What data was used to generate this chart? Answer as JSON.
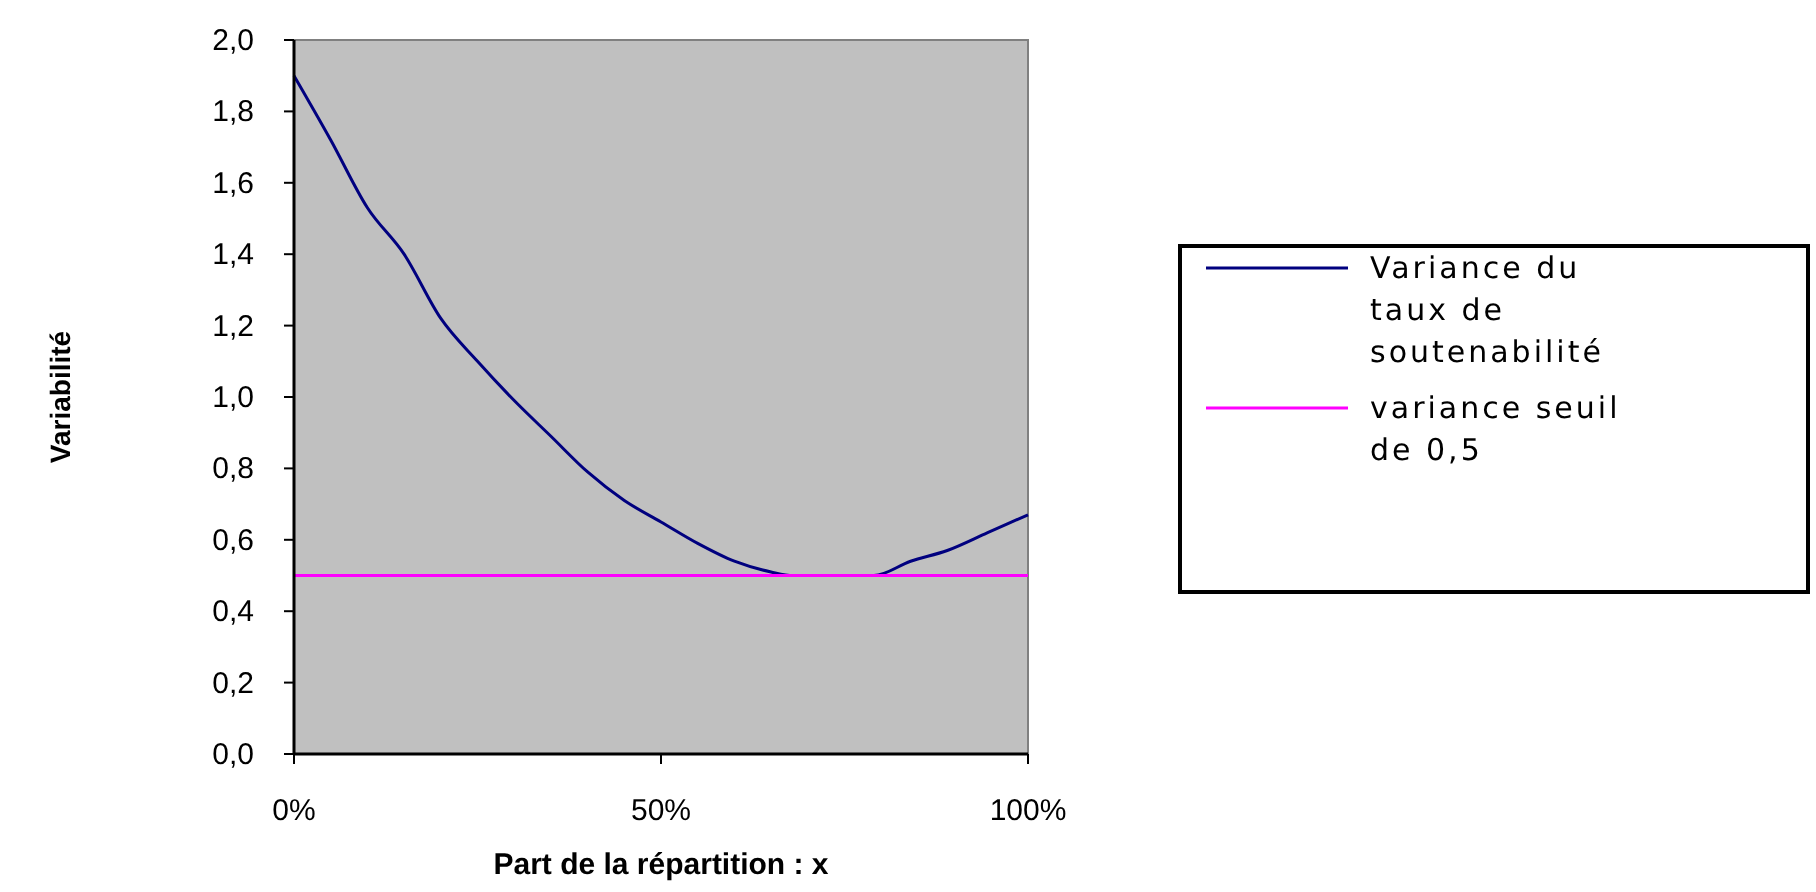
{
  "chart_data": {
    "type": "line",
    "xlabel": "Part de la répartition : x",
    "ylabel": "Variabilité",
    "xlim": [
      0,
      100
    ],
    "xticks": [
      {
        "value": 0,
        "label": "0%"
      },
      {
        "value": 50,
        "label": "50%"
      },
      {
        "value": 100,
        "label": "100%"
      }
    ],
    "ylim": [
      0,
      2
    ],
    "yticks": [
      {
        "value": 0,
        "label": "0,0"
      },
      {
        "value": 0.2,
        "label": "0,2"
      },
      {
        "value": 0.4,
        "label": "0,4"
      },
      {
        "value": 0.6,
        "label": "0,6"
      },
      {
        "value": 0.8,
        "label": "0,8"
      },
      {
        "value": 1,
        "label": "1,0"
      },
      {
        "value": 1.2,
        "label": "1,2"
      },
      {
        "value": 1.4,
        "label": "1,4"
      },
      {
        "value": 1.6,
        "label": "1,6"
      },
      {
        "value": 1.8,
        "label": "1,8"
      },
      {
        "value": 2,
        "label": "2,0"
      }
    ],
    "grid": false,
    "legend": "right",
    "line_style": "solid",
    "series": [
      {
        "name": "Variance du taux de soutenabilité",
        "color": "#00007f",
        "x": [
          0,
          5,
          10,
          15,
          20,
          25,
          30,
          35,
          40,
          45,
          50,
          55,
          60,
          65,
          68,
          79,
          84,
          89,
          94.5,
          100
        ],
        "values": [
          1.9,
          1.72,
          1.53,
          1.4,
          1.22,
          1.1,
          0.99,
          0.89,
          0.79,
          0.71,
          0.65,
          0.59,
          0.54,
          0.51,
          0.5,
          0.5,
          0.54,
          0.57,
          0.62,
          0.67
        ]
      },
      {
        "name": "variance seuil de 0,5",
        "color": "#ff00ff",
        "x": [
          0,
          100
        ],
        "values": [
          0.5,
          0.5
        ]
      }
    ]
  }
}
